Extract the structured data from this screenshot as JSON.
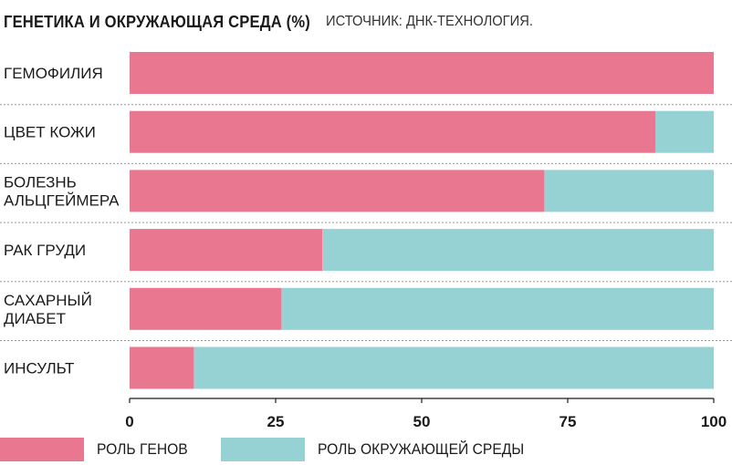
{
  "header": {
    "title": "ГЕНЕТИКА И ОКРУЖАЮЩАЯ СРЕДА (%)",
    "source": "ИСТОЧНИК: ДНК-ТЕХНОЛОГИЯ."
  },
  "colors": {
    "genes": "#e8778f",
    "environment": "#96d1d4",
    "row_background": "#ffffff",
    "separator": "#999999",
    "axis": "#1a1a1a"
  },
  "chart_data": {
    "type": "bar",
    "orientation": "horizontal",
    "stacked": true,
    "title": "ГЕНЕТИКА И ОКРУЖАЮЩАЯ СРЕДА (%)",
    "categories": [
      [
        "ГЕМОФИЛИЯ"
      ],
      [
        "ЦВЕТ КОЖИ"
      ],
      [
        "БОЛЕЗНЬ",
        "АЛЬЦГЕЙМЕРА"
      ],
      [
        "РАК ГРУДИ"
      ],
      [
        "САХАРНЫЙ",
        "ДИАБЕТ"
      ],
      [
        "ИНСУЛЬТ"
      ]
    ],
    "series": [
      {
        "name": "РОЛЬ ГЕНОВ",
        "values": [
          100,
          90,
          71,
          33,
          26,
          11
        ]
      },
      {
        "name": "РОЛЬ ОКРУЖАЮЩЕЙ СРЕДЫ",
        "values": [
          0,
          10,
          29,
          67,
          74,
          89
        ]
      }
    ],
    "xlim": [
      0,
      100
    ],
    "xticks": [
      "0",
      "25",
      "50",
      "75",
      "100"
    ],
    "grid": false,
    "legend_position": "bottom"
  },
  "legend": [
    {
      "label": "РОЛЬ ГЕНОВ",
      "color": "#e8778f"
    },
    {
      "label": "РОЛЬ ОКРУЖАЮЩЕЙ СРЕДЫ",
      "color": "#96d1d4"
    }
  ]
}
